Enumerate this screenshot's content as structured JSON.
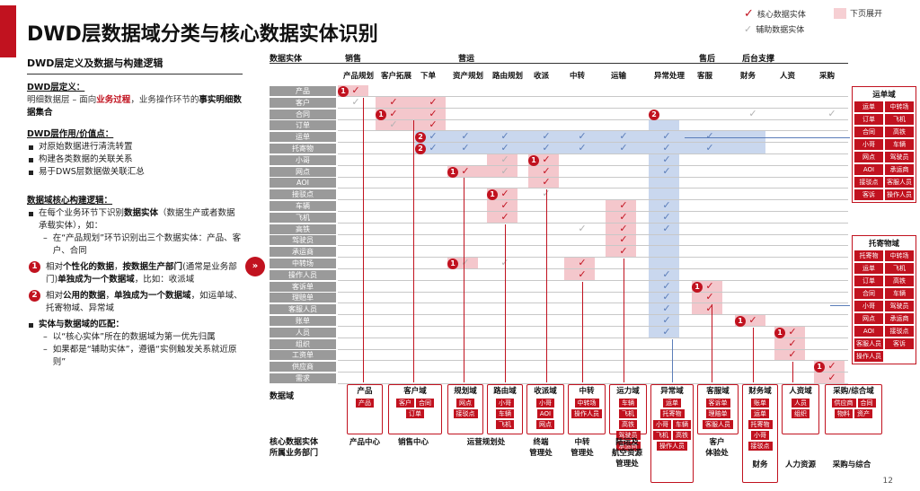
{
  "title": "DWD层数据域分类与核心数据实体识别",
  "legend": {
    "core": "核心数据实体",
    "aux": "辅助数据实体",
    "next_page": "下页展开"
  },
  "left": {
    "heading": "DWD层定义及数据与构建逻辑",
    "def_title": "DWD层定义：",
    "def_pre": "明细数据层 – 面向",
    "def_red": "业务过程",
    "def_mid": "，业务操作环节的",
    "def_bold": "事实明细数据集合",
    "use_title": "DWD层作用/价值点：",
    "uses": [
      "对原始数据进行清洗转置",
      "构建各类数据的关联关系",
      "易于DWS层数据做关联汇总"
    ],
    "logic_title": "数据域核心构建逻辑：",
    "logic1_pre": "在每个业务环节下识别",
    "logic1_bold": "数据实体",
    "logic1_post": "（数据生产或者数据承载实体），如：",
    "logic1_dash": "在“产品规划”环节识别出三个数据实体：产品、客户、合同",
    "p1_pre": "相对",
    "p1_bold1": "个性化的数据",
    "p1_mid": "，",
    "p1_bold2": "按数据生产部门",
    "p1_post": "(通常是业务部门)",
    "p1_bold3": "单独成为一个数据域",
    "p1_tail": "，比如：收派域",
    "p2_pre": "相对",
    "p2_bold1": "公用的数据",
    "p2_mid": "，",
    "p2_bold2": "单独成为一个数据域",
    "p2_tail": "，如运单域、托寄物域、异常域",
    "match_title": "实体与数据域的匹配：",
    "match1": "以“核心实体”所在的数据域为第一优先归属",
    "match2": "如果都是“辅助实体”，遵循“实例触发关系就近原则”"
  },
  "matrix": {
    "corner": "数据实体",
    "groups": [
      "销售",
      "营运",
      "售后",
      "后台支撑"
    ],
    "steps": [
      "产品规划",
      "客户拓展",
      "下单",
      "资产规划",
      "路由规划",
      "收派",
      "中转",
      "运输",
      "异常处理",
      "客服",
      "财务",
      "人资",
      "采购"
    ],
    "entities": [
      "产品",
      "客户",
      "合同",
      "订单",
      "运单",
      "托寄物",
      "小哥",
      "网点",
      "AOI",
      "接驳点",
      "车辆",
      "飞机",
      "高铁",
      "驾驶员",
      "承运商",
      "中转场",
      "操作人员",
      "客诉单",
      "理赔单",
      "客服人员",
      "账单",
      "人员",
      "组织",
      "工资单",
      "供应商",
      "需求"
    ]
  },
  "domain_row_label": "数据域",
  "dept_row_label": "核心数据实体\n所属业务部门",
  "domains": [
    {
      "name": "产品",
      "items": [
        "产品"
      ]
    },
    {
      "name": "客户域",
      "items": [
        "客户",
        "合同",
        "订单"
      ]
    },
    {
      "name": "规划域",
      "items": [
        "网点",
        "接驳点"
      ]
    },
    {
      "name": "路由域",
      "items": [
        "小哥",
        "车辆",
        "飞机"
      ]
    },
    {
      "name": "收派域",
      "items": [
        "小哥",
        "AOI",
        "网点"
      ]
    },
    {
      "name": "中转",
      "items": [
        "中转场",
        "操作人员"
      ]
    },
    {
      "name": "运力域",
      "items": [
        "车辆",
        "飞机",
        "高铁",
        "驾驶员",
        "承运商"
      ]
    },
    {
      "name": "异常域",
      "items": [
        "运单",
        "托寄物",
        "小哥",
        "车辆",
        "飞机",
        "高铁",
        "操作人员"
      ]
    },
    {
      "name": "客服域",
      "items": [
        "客诉单",
        "理赔单",
        "客服人员"
      ]
    },
    {
      "name": "财务域",
      "items": [
        "账单",
        "运单",
        "托寄物",
        "小哥",
        "接驳点"
      ]
    },
    {
      "name": "人资域",
      "items": [
        "人员",
        "组织"
      ]
    },
    {
      "name": "采购/综合域",
      "items": [
        "供应商",
        "合同",
        "物料",
        "资产"
      ]
    }
  ],
  "depts": [
    "产品中心",
    "销售中心",
    "运营规划处",
    "终端\n管理处",
    "中转\n管理处",
    "陆运及\n航空资源\n管理处",
    "客户\n体验处",
    "财务",
    "人力资源",
    "采购与综合"
  ],
  "right_panels": [
    {
      "title": "运单域",
      "items": [
        "运单",
        "中转场",
        "订单",
        "飞机",
        "合同",
        "高铁",
        "小哥",
        "车辆",
        "网点",
        "驾驶员",
        "AOI",
        "承运商",
        "接驳点",
        "客服人员",
        "客诉",
        "操作人员"
      ]
    },
    {
      "title": "托寄物域",
      "items": [
        "托寄物",
        "中转场",
        "运单",
        "飞机",
        "订单",
        "高铁",
        "合同",
        "车辆",
        "小哥",
        "驾驶员",
        "网点",
        "承运商",
        "AOI",
        "接驳点",
        "客服人员",
        "客诉",
        "操作人员"
      ]
    }
  ],
  "page_number": "12",
  "arrow_glyph": "»",
  "check_glyph": "✓"
}
